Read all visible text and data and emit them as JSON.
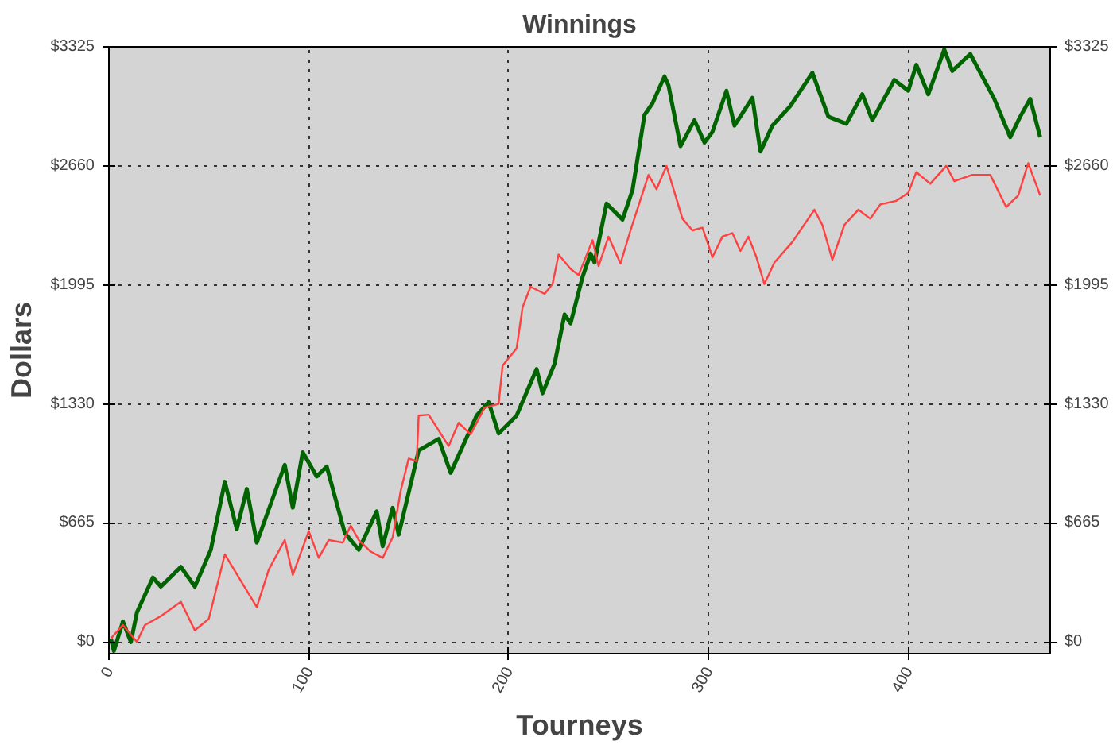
{
  "chart_data": {
    "type": "line",
    "title": "Winnings",
    "xlabel": "Tourneys",
    "ylabel": "Dollars",
    "xlim": [
      0,
      471
    ],
    "xticks": [
      0,
      100,
      200,
      300,
      400
    ],
    "ylim": [
      -65,
      3325
    ],
    "yticks": [
      {
        "value": 0,
        "label": "$0"
      },
      {
        "value": 665,
        "label": "$665"
      },
      {
        "value": 1330,
        "label": "$1330"
      },
      {
        "value": 1995,
        "label": "$1995"
      },
      {
        "value": 2660,
        "label": "$2660"
      },
      {
        "value": 3325,
        "label": "$3325"
      }
    ],
    "y2lim": [
      -65,
      3325
    ],
    "y2ticks": [
      {
        "value": 0,
        "label": "$0"
      },
      {
        "value": 665,
        "label": "$665"
      },
      {
        "value": 1330,
        "label": "$1330"
      },
      {
        "value": 1995,
        "label": "$1995"
      },
      {
        "value": 2660,
        "label": "$2660"
      },
      {
        "value": 3325,
        "label": "$3325"
      }
    ],
    "grid": true,
    "marker": "none",
    "line_style": "solid",
    "series": [
      {
        "color": "#006400",
        "x": [
          1,
          2.5,
          7,
          11,
          14,
          22,
          26,
          36,
          43,
          51,
          58,
          64,
          69,
          74,
          88,
          92,
          97,
          104,
          109,
          118,
          125,
          134,
          137,
          142,
          145,
          155,
          165,
          171,
          184,
          190,
          195,
          204,
          214,
          217,
          223,
          228,
          231,
          237,
          241,
          243,
          249,
          257,
          262,
          268,
          272,
          278,
          280,
          286,
          293,
          298,
          302,
          309,
          313,
          322,
          326,
          332,
          341,
          352,
          360,
          369,
          377,
          382,
          393,
          400,
          404,
          410,
          418,
          422,
          431,
          443,
          451,
          456,
          461,
          466
        ],
        "values": [
          20,
          -50,
          115,
          0,
          165,
          360,
          310,
          420,
          310,
          515,
          895,
          630,
          855,
          555,
          990,
          750,
          1060,
          925,
          980,
          610,
          515,
          730,
          535,
          750,
          600,
          1070,
          1135,
          945,
          1265,
          1340,
          1165,
          1265,
          1525,
          1390,
          1555,
          1830,
          1780,
          2040,
          2170,
          2120,
          2450,
          2360,
          2525,
          2945,
          3010,
          3160,
          3110,
          2770,
          2915,
          2790,
          2850,
          3080,
          2885,
          3040,
          2740,
          2885,
          2995,
          3180,
          2935,
          2895,
          3060,
          2915,
          3140,
          3080,
          3225,
          3060,
          3310,
          3190,
          3285,
          3035,
          2820,
          2935,
          3035,
          2820
        ]
      },
      {
        "color": "#ff4040",
        "x": [
          1,
          7,
          14,
          18,
          26,
          36,
          43,
          50,
          58,
          65,
          74,
          80,
          88,
          92,
          100,
          105,
          110,
          117,
          121,
          125,
          131,
          137,
          142,
          146,
          150,
          154,
          155,
          160,
          170,
          175,
          181,
          188,
          195,
          197,
          204,
          207,
          211,
          218,
          222,
          225,
          231,
          235,
          242,
          245,
          250,
          256,
          261,
          270,
          274,
          279,
          287,
          292,
          297,
          302,
          307,
          312,
          316,
          320,
          324,
          328,
          333,
          342,
          353,
          357,
          362,
          368,
          375,
          381,
          386,
          394,
          400,
          404,
          411,
          419,
          423,
          432,
          441,
          449,
          455,
          460,
          466
        ],
        "values": [
          20,
          95,
          0,
          95,
          145,
          225,
          65,
          130,
          490,
          360,
          195,
          405,
          570,
          375,
          620,
          470,
          570,
          555,
          650,
          570,
          505,
          470,
          585,
          845,
          1025,
          1010,
          1265,
          1270,
          1095,
          1225,
          1160,
          1310,
          1330,
          1545,
          1640,
          1870,
          1985,
          1945,
          2000,
          2165,
          2085,
          2050,
          2245,
          2100,
          2265,
          2115,
          2300,
          2610,
          2530,
          2660,
          2365,
          2300,
          2315,
          2150,
          2265,
          2285,
          2185,
          2265,
          2150,
          2000,
          2120,
          2235,
          2415,
          2330,
          2135,
          2330,
          2415,
          2365,
          2445,
          2465,
          2510,
          2625,
          2560,
          2660,
          2575,
          2610,
          2610,
          2430,
          2495,
          2675,
          2495
        ]
      }
    ]
  }
}
